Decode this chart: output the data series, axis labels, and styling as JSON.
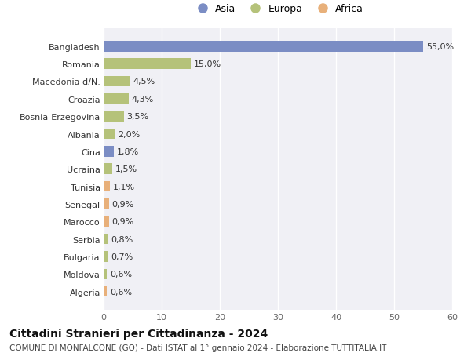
{
  "countries": [
    "Bangladesh",
    "Romania",
    "Macedonia d/N.",
    "Croazia",
    "Bosnia-Erzegovina",
    "Albania",
    "Cina",
    "Ucraina",
    "Tunisia",
    "Senegal",
    "Marocco",
    "Serbia",
    "Bulgaria",
    "Moldova",
    "Algeria"
  ],
  "values": [
    55.0,
    15.0,
    4.5,
    4.3,
    3.5,
    2.0,
    1.8,
    1.5,
    1.1,
    0.9,
    0.9,
    0.8,
    0.7,
    0.6,
    0.6
  ],
  "labels": [
    "55,0%",
    "15,0%",
    "4,5%",
    "4,3%",
    "3,5%",
    "2,0%",
    "1,8%",
    "1,5%",
    "1,1%",
    "0,9%",
    "0,9%",
    "0,8%",
    "0,7%",
    "0,6%",
    "0,6%"
  ],
  "continents": [
    "Asia",
    "Europa",
    "Europa",
    "Europa",
    "Europa",
    "Europa",
    "Asia",
    "Europa",
    "Africa",
    "Africa",
    "Africa",
    "Europa",
    "Europa",
    "Europa",
    "Africa"
  ],
  "colors": {
    "Asia": "#7b8dc4",
    "Europa": "#b5c27a",
    "Africa": "#e8b07a"
  },
  "legend_order": [
    "Asia",
    "Europa",
    "Africa"
  ],
  "xlim": [
    0,
    60
  ],
  "xticks": [
    0,
    10,
    20,
    30,
    40,
    50,
    60
  ],
  "title": "Cittadini Stranieri per Cittadinanza - 2024",
  "subtitle": "COMUNE DI MONFALCONE (GO) - Dati ISTAT al 1° gennaio 2024 - Elaborazione TUTTITALIA.IT",
  "bg_color": "#ffffff",
  "plot_bg_color": "#f0f0f5",
  "grid_color": "#ffffff",
  "bar_height": 0.6,
  "title_fontsize": 10,
  "subtitle_fontsize": 7.5,
  "tick_fontsize": 8,
  "label_fontsize": 8,
  "legend_fontsize": 9
}
